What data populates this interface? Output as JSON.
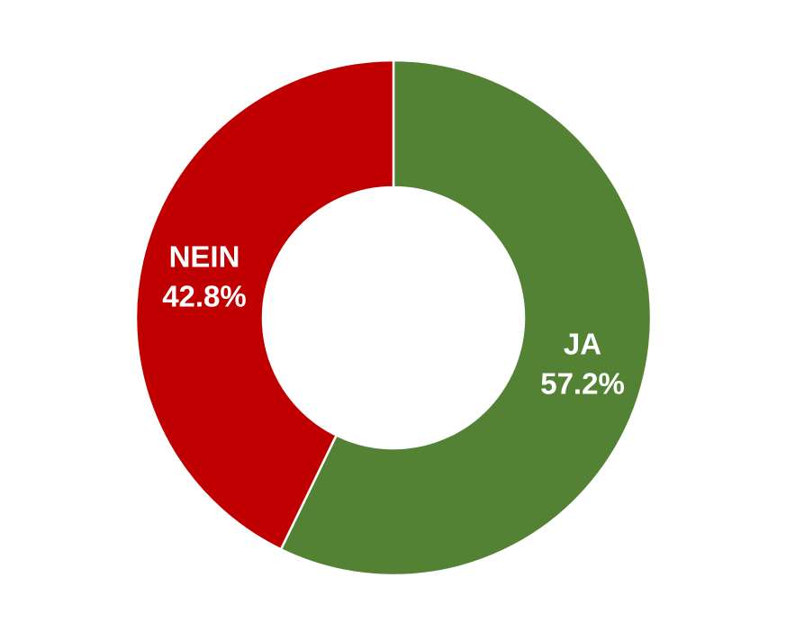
{
  "chart_data": {
    "type": "pie",
    "subtype": "donut",
    "slices": [
      {
        "label": "JA",
        "value": 57.2,
        "value_label": "57.2%",
        "color": "#548235"
      },
      {
        "label": "NEIN",
        "value": 42.8,
        "value_label": "42.8%",
        "color": "#C00000"
      }
    ],
    "start_angle": "12 o'clock",
    "direction": "clockwise",
    "legend": "none"
  }
}
